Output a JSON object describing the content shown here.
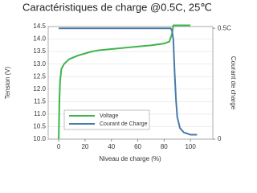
{
  "chart_data": {
    "type": "line",
    "title": "Caractéristiques de charge @0.5C, 25℃",
    "x_label": "Niveau de charge (%)",
    "y_label": "Tension (V)",
    "y2_label": "Courant de charge",
    "xlim": [
      -8,
      117
    ],
    "xticks": [
      0,
      20,
      40,
      60,
      80,
      100
    ],
    "ylim": [
      10.0,
      14.5
    ],
    "yticks": [
      {
        "value": 10.0,
        "label": "10.0"
      },
      10.5,
      {
        "value": 11.0,
        "label": "11.0"
      },
      11.5,
      {
        "value": 12.0,
        "label": "12.0"
      },
      12.5,
      {
        "value": 13.0,
        "label": "13.0"
      },
      13.5,
      {
        "value": 14.0,
        "label": "14.0"
      },
      14.5
    ],
    "y2lim": [
      0,
      0.508
    ],
    "y2ticks": [
      0,
      {
        "value": 0.5,
        "label": "0.5C"
      }
    ],
    "grid": true,
    "legend": "lower center",
    "series": [
      {
        "name": "Voltage",
        "color": "#3cb44b",
        "x": [
          0,
          0.5,
          1,
          2,
          4,
          8,
          15,
          25,
          30,
          40,
          50,
          60,
          70,
          80,
          84,
          86,
          87,
          100
        ],
        "values": [
          10.0,
          11.5,
          12.3,
          12.8,
          13.0,
          13.2,
          13.35,
          13.5,
          13.55,
          13.6,
          13.65,
          13.7,
          13.75,
          13.82,
          13.9,
          14.2,
          14.55,
          14.55
        ]
      },
      {
        "name": "Courant de Charge",
        "color": "#4a7aa8",
        "axis": "y2",
        "x": [
          0,
          85,
          86,
          87,
          88,
          89,
          90,
          92,
          95,
          100,
          105
        ],
        "values": [
          0.5,
          0.5,
          0.49,
          0.45,
          0.3,
          0.18,
          0.1,
          0.05,
          0.03,
          0.02,
          0.02
        ]
      }
    ]
  }
}
